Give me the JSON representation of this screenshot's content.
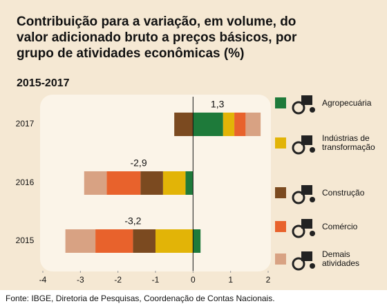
{
  "chart_data": {
    "type": "bar",
    "orientation": "horizontal",
    "stacked": true,
    "title": "Contribuição para a variação, em volume, do valor adicionado bruto a preços básicos, por grupo de atividades econômicas (%)",
    "subtitle": "2015-2017",
    "source": "Fonte: IBGE, Diretoria de Pesquisas, Coordenação de Contas Nacionais.",
    "categories": [
      "2017",
      "2016",
      "2015"
    ],
    "series": [
      {
        "name": "Agropecuária",
        "color": "#1e7a3a",
        "values": [
          0.8,
          -0.2,
          0.2
        ]
      },
      {
        "name": "Indústrias de transformação",
        "color": "#e2b407",
        "values": [
          0.3,
          -0.6,
          -1.0
        ]
      },
      {
        "name": "Construção",
        "color": "#7b4a20",
        "values": [
          -0.5,
          -0.6,
          -0.6
        ]
      },
      {
        "name": "Comércio",
        "color": "#e8622c",
        "values": [
          0.3,
          -0.9,
          -1.0
        ]
      },
      {
        "name": "Demais atividades",
        "color": "#d8a283",
        "values": [
          0.4,
          -0.6,
          -0.8
        ]
      }
    ],
    "totals": [
      1.3,
      -2.9,
      -3.2
    ],
    "total_labels": [
      "1,3",
      "-2,9",
      "-3,2"
    ],
    "xlim": [
      -4,
      2
    ],
    "xticks": [
      -4,
      -3,
      -2,
      -1,
      0,
      1,
      2
    ]
  }
}
